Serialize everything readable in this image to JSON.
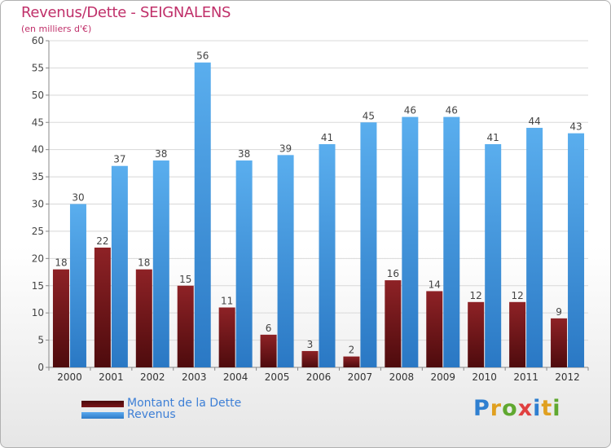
{
  "header": {
    "title": "Revenus/Dette - SEIGNALENS",
    "subtitle": "(en milliers d'€)"
  },
  "chart_data": {
    "type": "bar",
    "categories": [
      "2000",
      "2001",
      "2002",
      "2003",
      "2004",
      "2005",
      "2006",
      "2007",
      "2008",
      "2009",
      "2010",
      "2011",
      "2012"
    ],
    "series": [
      {
        "name": "Montant de la Dette",
        "color": "#7a1518",
        "values": [
          18,
          22,
          18,
          15,
          11,
          6,
          3,
          2,
          16,
          14,
          12,
          12,
          9
        ]
      },
      {
        "name": "Revenus",
        "color": "#3d8fdc",
        "values": [
          30,
          37,
          38,
          56,
          38,
          39,
          41,
          45,
          46,
          46,
          41,
          44,
          43
        ]
      }
    ],
    "ylim": [
      0,
      60
    ],
    "yticks": [
      0,
      5,
      10,
      15,
      20,
      25,
      30,
      35,
      40,
      45,
      50,
      55,
      60
    ],
    "grid": true,
    "legend_position": "bottom-left"
  },
  "logo": {
    "text": "Proxiti",
    "letter_colors": [
      "#2f7fd0",
      "#e0a020",
      "#60a830",
      "#e04040",
      "#2f7fd0",
      "#e0a020",
      "#60a830"
    ]
  }
}
